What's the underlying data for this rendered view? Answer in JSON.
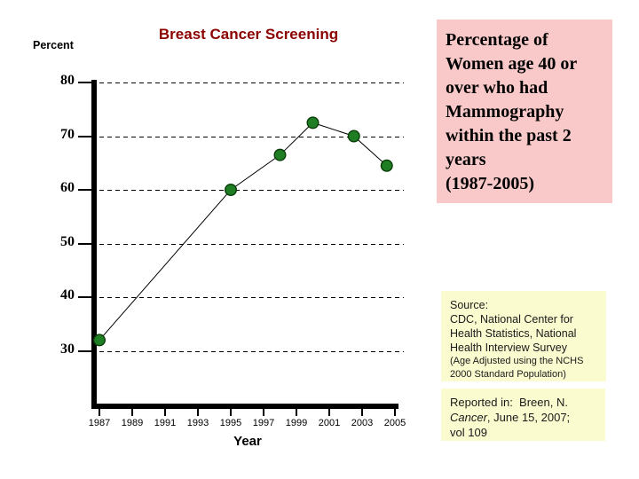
{
  "chart": {
    "title": "Breast Cancer Screening",
    "y_axis_title": "Percent",
    "x_axis_title": "Year",
    "colors": {
      "title": "#8b0000",
      "axis": "#000000",
      "line": "#000000",
      "marker_fill": "#1f7d23",
      "marker_stroke": "#0a3d0a"
    }
  },
  "chart_data": {
    "type": "line",
    "title": "Breast Cancer Screening",
    "xlabel": "Year",
    "ylabel": "Percent",
    "x_ticks": [
      1987,
      1989,
      1991,
      1993,
      1995,
      1997,
      1999,
      2001,
      2003,
      2005
    ],
    "y_ticks": [
      80,
      70,
      60,
      50,
      40,
      30
    ],
    "ylim": [
      28,
      82
    ],
    "grid": "horizontal dashed black lines at each y tick",
    "legend": "none",
    "marker": "filled dark-green circle with dark outline",
    "series": [
      {
        "name": "Percentage of Women age 40 or over who had Mammography within the past 2 years",
        "points": [
          {
            "year": 1987,
            "value": 32
          },
          {
            "year": 1995,
            "value": 60
          },
          {
            "year": 1998,
            "value": 66.5
          },
          {
            "year": 2000,
            "value": 72.5
          },
          {
            "year": 2002.5,
            "value": 70
          },
          {
            "year": 2004.5,
            "value": 64.5
          }
        ]
      }
    ]
  },
  "callout": {
    "bg": "#f9c9c9",
    "lines": [
      "Percentage of",
      "Women age 40 or",
      "over who had",
      "Mammography",
      "within the past 2",
      "years",
      "(1987-2005)"
    ]
  },
  "source_box": {
    "bg": "#fbfbd0",
    "lines": [
      "Source:",
      "CDC, National Center for",
      "Health Statistics, National",
      "Health Interview Survey"
    ],
    "small_lines": [
      "(Age Adjusted using the NCHS",
      "2000 Standard Population)"
    ]
  },
  "citation_box": {
    "bg": "#fbfbd0",
    "line1": "Reported in:  Breen, N.",
    "line2_italic": "Cancer",
    "line2_rest": ", June 15, 2007;",
    "line3": "vol 109"
  }
}
